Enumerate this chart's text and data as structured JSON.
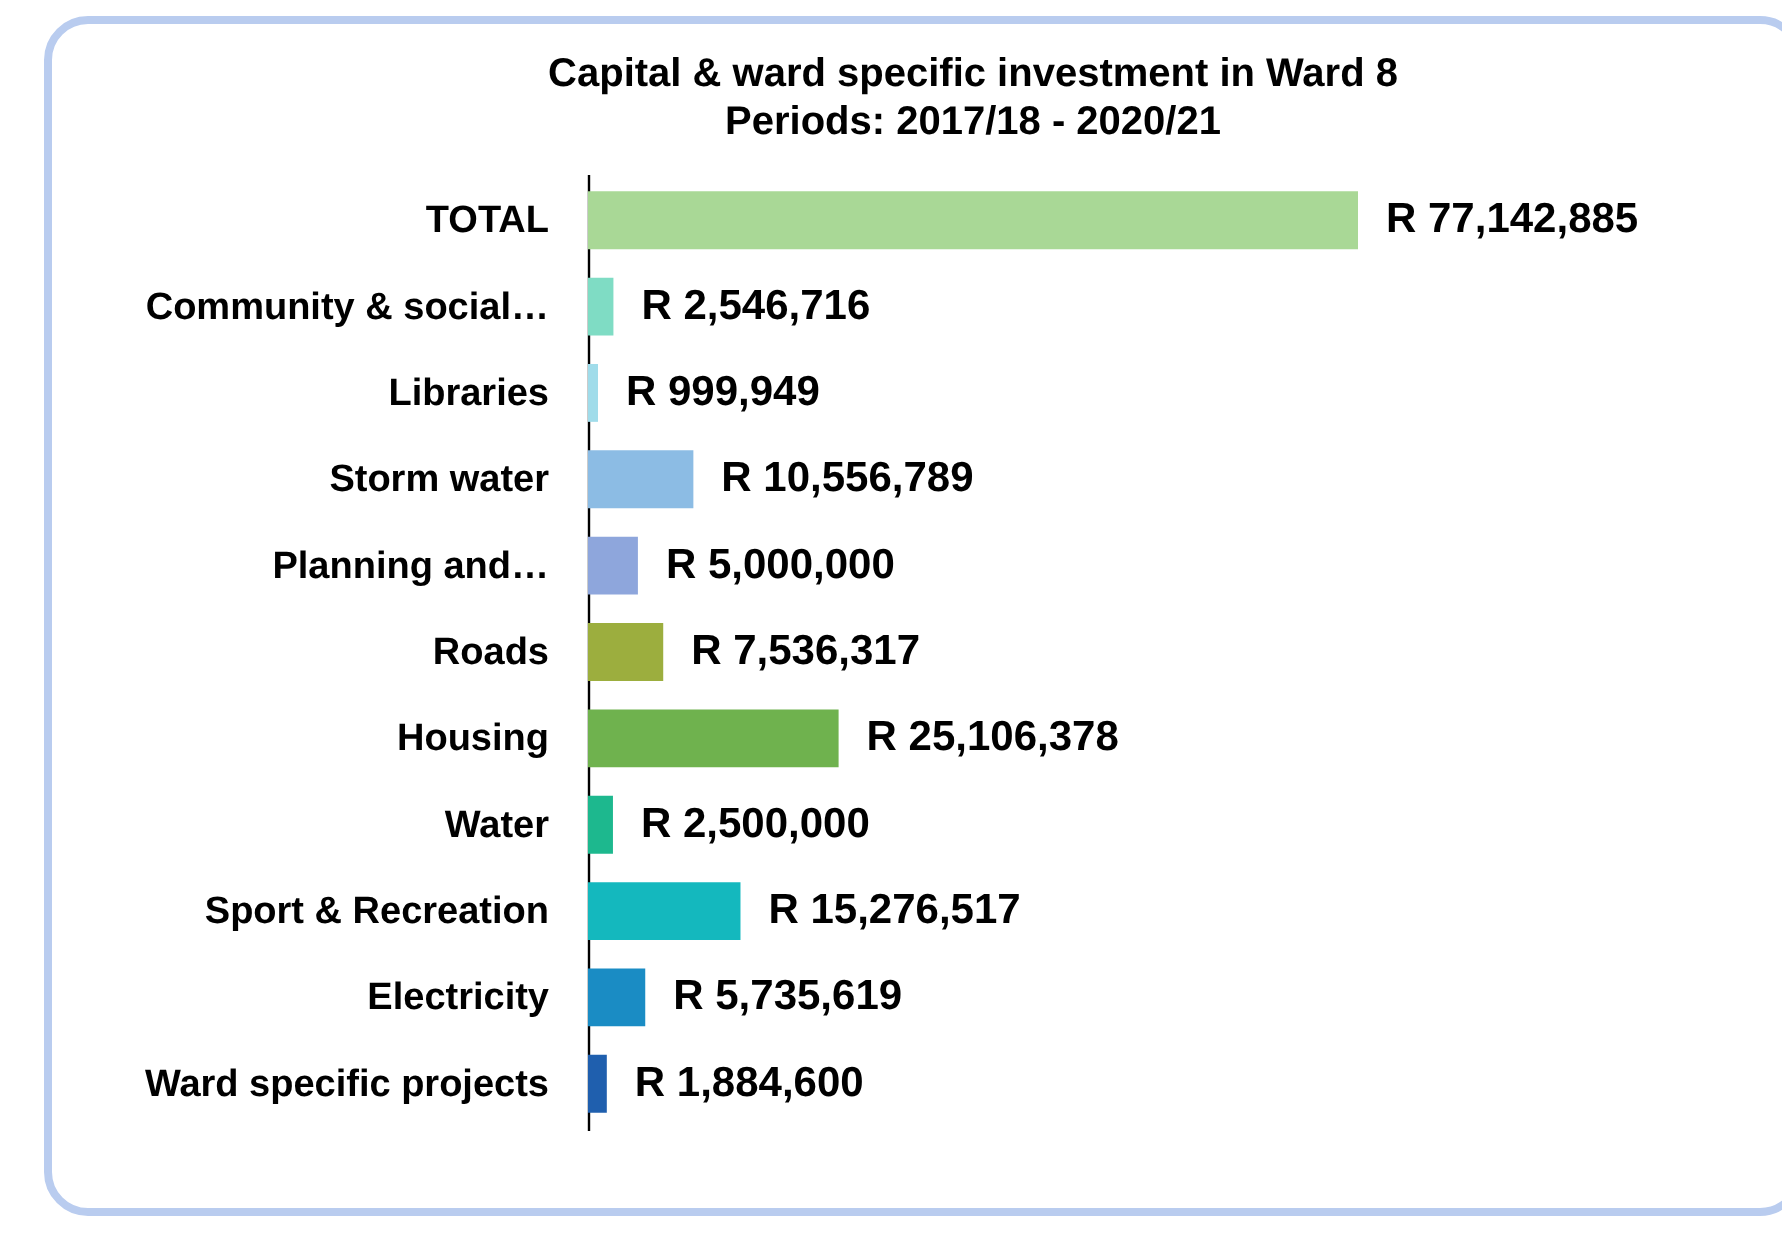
{
  "chart_data": {
    "type": "bar",
    "orientation": "horizontal",
    "title": "Capital & ward specific investment in Ward 8",
    "subtitle": "Periods: 2017/18 - 2020/21",
    "categories": [
      "TOTAL",
      "Community & social…",
      "Libraries",
      "Storm water",
      "Planning and…",
      "Roads",
      "Housing",
      "Water",
      "Sport & Recreation",
      "Electricity",
      "Ward specific projects"
    ],
    "values": [
      77142885,
      2546716,
      999949,
      10556789,
      5000000,
      7536317,
      25106378,
      2500000,
      15276517,
      5735619,
      1884600
    ],
    "colors": [
      "#a9d896",
      "#7fdcc4",
      "#a0dcea",
      "#8cbce4",
      "#8ea6dc",
      "#9cae3e",
      "#6fb24e",
      "#1db88e",
      "#14b8be",
      "#1a8cc4",
      "#1f5fae"
    ],
    "value_labels": [
      "R 77,142,885",
      "R 2,546,716",
      "R 999,949",
      "R 10,556,789",
      "R 5,000,000",
      "R 7,536,317",
      "R 25,106,378",
      "R 2,500,000",
      "R 15,276,517",
      "R 5,735,619",
      "R 1,884,600"
    ],
    "data_labels": false
  }
}
